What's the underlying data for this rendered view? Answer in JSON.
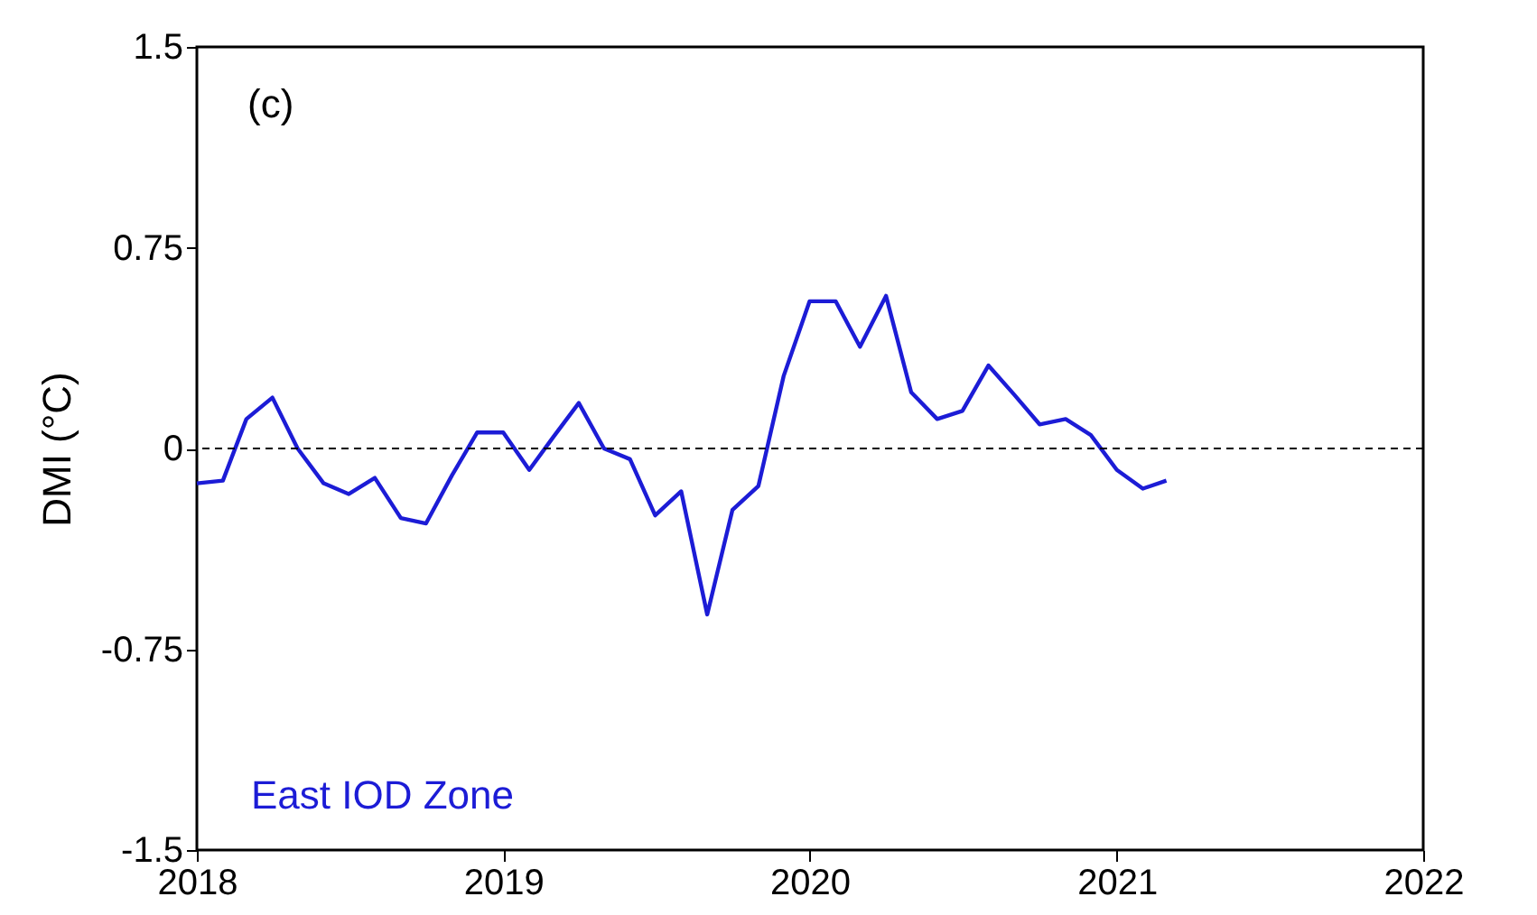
{
  "chart_data": {
    "type": "line",
    "ylabel": "DMI (°C)",
    "annotations": [
      "(c)"
    ],
    "x": [
      "2018-01",
      "2018-02",
      "2018-03",
      "2018-04",
      "2018-05",
      "2018-06",
      "2018-07",
      "2018-08",
      "2018-09",
      "2018-10",
      "2018-11",
      "2018-12",
      "2019-01",
      "2019-02",
      "2019-03",
      "2019-04",
      "2019-05",
      "2019-06",
      "2019-07",
      "2019-08",
      "2019-09",
      "2019-10",
      "2019-11",
      "2019-12",
      "2020-01",
      "2020-02",
      "2020-03",
      "2020-04",
      "2020-05",
      "2020-06",
      "2020-07",
      "2020-08",
      "2020-09",
      "2020-10",
      "2020-11",
      "2020-12",
      "2021-01",
      "2021-02",
      "2021-03"
    ],
    "series": [
      {
        "name": "East IOD Zone",
        "color": "#1c1cd6",
        "values": [
          -0.13,
          -0.12,
          0.11,
          0.19,
          0.0,
          -0.13,
          -0.17,
          -0.11,
          -0.26,
          -0.28,
          -0.1,
          0.06,
          0.06,
          -0.08,
          0.04,
          0.17,
          0.0,
          -0.04,
          -0.25,
          -0.16,
          -0.62,
          -0.23,
          -0.14,
          0.27,
          0.55,
          0.55,
          0.38,
          0.57,
          0.21,
          0.11,
          0.14,
          0.31,
          0.2,
          0.09,
          0.11,
          0.05,
          -0.08,
          -0.15,
          -0.12
        ]
      }
    ],
    "xlim": [
      "2018",
      "2022"
    ],
    "xticks": [
      "2018",
      "2019",
      "2020",
      "2021",
      "2022"
    ],
    "ylim": [
      -1.5,
      1.5
    ],
    "yticks": [
      -1.5,
      -0.75,
      0,
      0.75,
      1.5
    ],
    "ref_lines": [
      {
        "axis": "y",
        "value": 0,
        "color": "#000000",
        "line_style": "dashed"
      }
    ],
    "grid": false,
    "marker": "none",
    "line_style": "solid"
  }
}
